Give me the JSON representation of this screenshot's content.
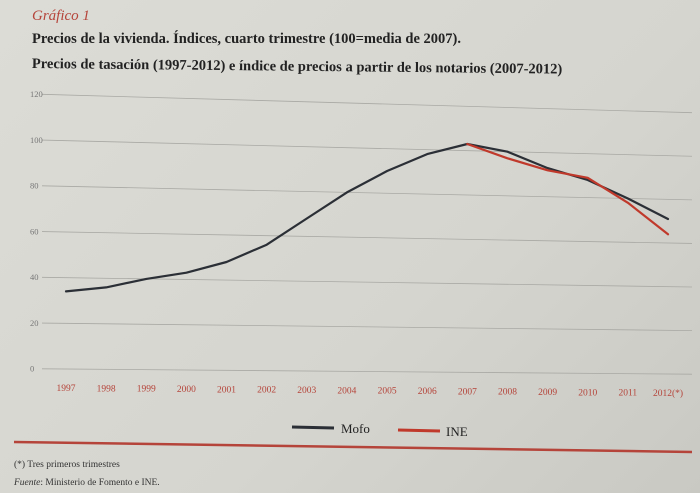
{
  "figure": {
    "label": "Gráfico 1",
    "title_line1": "Precios de la vivienda. Índices, cuarto trimestre (100=media de 2007).",
    "title_line2": "Precios de tasación (1997-2012) e índice de precios a partir de los notarios (2007-2012)",
    "footnote": "(*)  Tres primeros trimestres",
    "source_label": "Fuente",
    "source_text": ": Ministerio de Fomento e INE."
  },
  "colors": {
    "mofo": "#2b2f36",
    "ine": "#c0392b",
    "accent": "#b5443a",
    "grid": "#a9a9a4"
  },
  "chart_data": {
    "type": "line",
    "x": [
      "1997",
      "1998",
      "1999",
      "2000",
      "2001",
      "2002",
      "2003",
      "2004",
      "2005",
      "2006",
      "2007",
      "2008",
      "2009",
      "2010",
      "2011",
      "2012(*)"
    ],
    "ylim": [
      0,
      120
    ],
    "yticks": [
      0,
      20,
      40,
      60,
      80,
      100,
      120
    ],
    "grid": true,
    "legend_position": "bottom-center",
    "series": [
      {
        "name": "Mofo",
        "color": "#2b2f36",
        "values": [
          34,
          36,
          40,
          43,
          48,
          56,
          68,
          80,
          90,
          98,
          103,
          100,
          93,
          88,
          80,
          71
        ]
      },
      {
        "name": "INE",
        "color": "#c0392b",
        "values": [
          null,
          null,
          null,
          null,
          null,
          null,
          null,
          null,
          null,
          null,
          103,
          97,
          92,
          89,
          78,
          64
        ]
      }
    ]
  }
}
